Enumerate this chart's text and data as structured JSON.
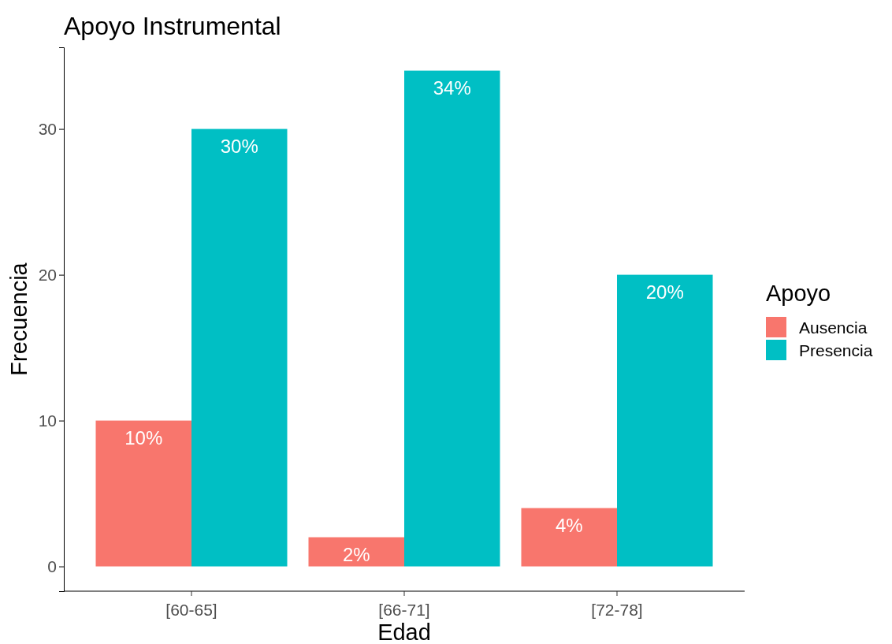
{
  "chart_data": {
    "type": "bar",
    "title": "Apoyo Instrumental",
    "xlabel": "Edad",
    "ylabel": "Frecuencia",
    "legend_title": "Apoyo",
    "categories": [
      "[60-65]",
      "[66-71]",
      "[72-78]"
    ],
    "series": [
      {
        "name": "Ausencia",
        "color": "#f8766d",
        "values": [
          10,
          2,
          4
        ],
        "value_labels": [
          "10%",
          "2%",
          "4%"
        ]
      },
      {
        "name": "Presencia",
        "color": "#00bfc4",
        "values": [
          30,
          34,
          20
        ],
        "value_labels": [
          "30%",
          "34%",
          "20%"
        ]
      }
    ],
    "ylim": [
      -1.7,
      35.6
    ],
    "yticks": [
      0,
      10,
      20,
      30
    ],
    "grid": false,
    "legend": "right"
  }
}
